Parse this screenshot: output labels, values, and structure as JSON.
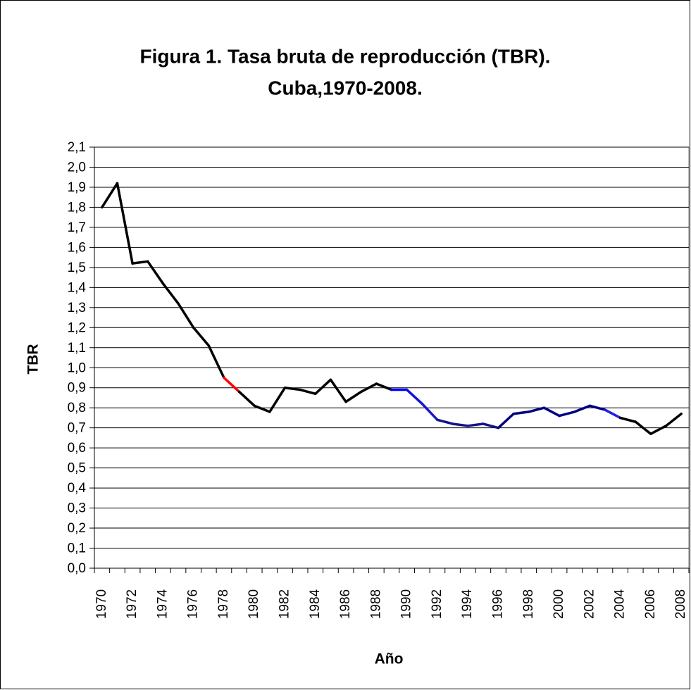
{
  "chart_data": {
    "type": "line",
    "title": [
      "Figura 1. Tasa bruta de reproducción (TBR).",
      "Cuba,1970-2008."
    ],
    "x_label": "Año",
    "y_label": "TBR",
    "categories": [
      "1970",
      null,
      "1972",
      null,
      "1974",
      null,
      "1976",
      null,
      "1978",
      null,
      "1980",
      null,
      "1982",
      null,
      "1984",
      null,
      "1986",
      null,
      "1988",
      null,
      "1990",
      null,
      "1992",
      null,
      "1994",
      null,
      "1996",
      null,
      "1998",
      null,
      "2000",
      null,
      "2002",
      null,
      "2004",
      null,
      "2006",
      null,
      "2008"
    ],
    "series": [
      {
        "color": "#000000",
        "values": [
          1.8,
          1.92,
          1.52,
          1.53,
          1.42,
          1.32,
          1.2,
          1.11,
          0.95,
          0.88,
          0.81,
          0.78,
          0.9,
          0.89,
          0.87,
          0.94,
          0.83,
          0.88,
          0.92,
          0.89,
          0.89,
          0.82,
          0.74,
          0.72,
          0.71,
          0.72,
          0.7,
          0.77,
          0.78,
          0.8,
          0.76,
          0.78,
          0.81,
          0.79,
          0.75,
          0.73,
          0.67,
          0.71,
          0.77
        ]
      }
    ],
    "segment_colors": [
      "#000000",
      "#000000",
      "#000000",
      "#000000",
      "#000000",
      "#000000",
      "#000000",
      "#000000",
      "#ff0000",
      "#000000",
      "#000000",
      "#000000",
      "#000000",
      "#000000",
      "#000000",
      "#000000",
      "#000000",
      "#000000",
      "#000000",
      "#0000ff",
      "#1010e0",
      "#1a1ac8",
      "#14148c",
      "#14148c",
      "#14148c",
      "#14148c",
      "#000080",
      "#000080",
      "#000080",
      "#000080",
      "#000080",
      "#000080",
      "#000080",
      "#2020e0",
      "#000000",
      "#000000",
      "#000000",
      "#000000"
    ],
    "ylim": [
      0,
      2.1
    ],
    "yticks": [
      {
        "value": 0,
        "label": "0,0"
      },
      {
        "value": 0.1,
        "label": "0,1"
      },
      {
        "value": 0.2,
        "label": "0,2"
      },
      {
        "value": 0.3,
        "label": "0,3"
      },
      {
        "value": 0.4,
        "label": "0,4"
      },
      {
        "value": 0.5,
        "label": "0,5"
      },
      {
        "value": 0.6,
        "label": "0,6"
      },
      {
        "value": 0.7,
        "label": "0,7"
      },
      {
        "value": 0.8,
        "label": "0,8"
      },
      {
        "value": 0.9,
        "label": "0,9"
      },
      {
        "value": 1.0,
        "label": "1,0"
      },
      {
        "value": 1.1,
        "label": "1,1"
      },
      {
        "value": 1.2,
        "label": "1,2"
      },
      {
        "value": 1.3,
        "label": "1,3"
      },
      {
        "value": 1.4,
        "label": "1,4"
      },
      {
        "value": 1.5,
        "label": "1,5"
      },
      {
        "value": 1.6,
        "label": "1,6"
      },
      {
        "value": 1.7,
        "label": "1,7"
      },
      {
        "value": 1.8,
        "label": "1,8"
      },
      {
        "value": 1.9,
        "label": "1,9"
      },
      {
        "value": 2.0,
        "label": "2,0"
      },
      {
        "value": 2.1,
        "label": "2,1"
      }
    ],
    "grid": true
  }
}
